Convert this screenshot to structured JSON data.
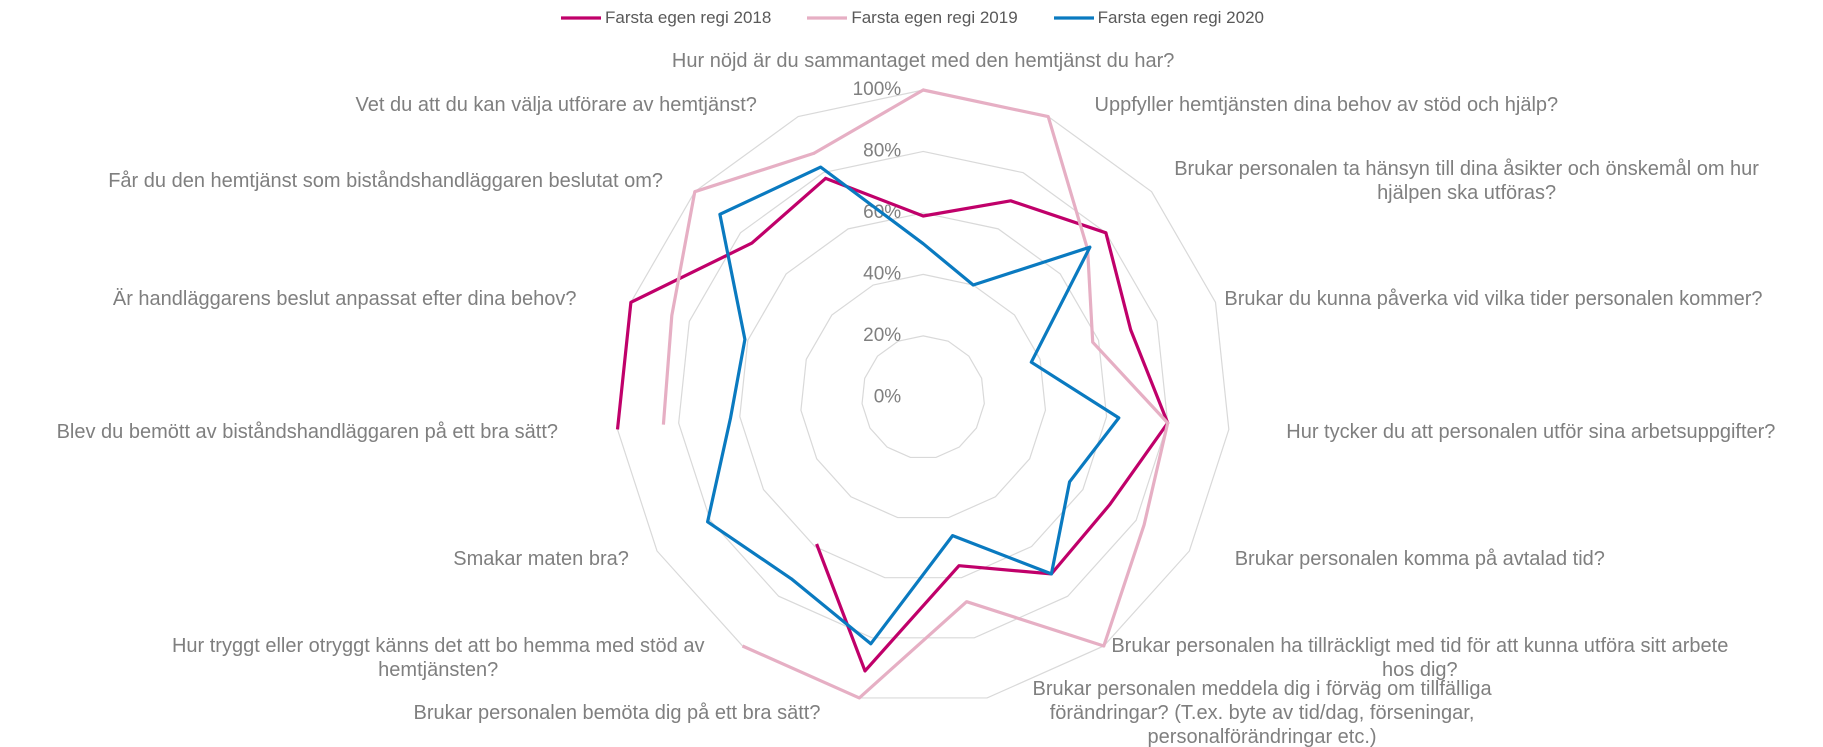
{
  "chart_data": {
    "type": "radar",
    "categories": [
      "Hur nöjd är du sammantaget med den hemtjänst du har?",
      "Uppfyller hemtjänsten dina behov av stöd och hjälp?",
      "Brukar personalen ta hänsyn till dina åsikter och önskemål om hur hjälpen ska utföras?",
      "Brukar du kunna påverka vid vilka tider personalen kommer?",
      "Hur tycker du att personalen utför sina arbetsuppgifter?",
      "Brukar personalen komma på avtalad tid?",
      "Brukar personalen ha tillräckligt med tid för att kunna utföra sitt arbete hos dig?",
      "Brukar personalen meddela dig i förväg om tillfälliga förändringar? (T.ex. byte av tid/dag, förseningar, personalförändringar etc.)",
      "Brukar personalen bemöta dig på ett bra sätt?",
      "Hur tryggt eller otryggt känns det att bo hemma med stöd av hemtjänsten?",
      "Smakar maten bra?",
      "Blev du bemött av biståndshandläggaren på ett bra sätt?",
      "Är handläggarens beslut anpassat efter dina behov?",
      "Får du den hemtjänst som biståndshandläggaren beslutat om?",
      "Vet du att du kan välja utförare av hemtjänst?"
    ],
    "series": [
      {
        "name": "Farsta egen regi 2018",
        "color": "#c0006a",
        "values": [
          59,
          70,
          80,
          71,
          80,
          70,
          71,
          56,
          91,
          59,
          null,
          100,
          100,
          75,
          78
        ]
      },
      {
        "name": "Farsta egen regi 2019",
        "color": "#e6afc4",
        "values": [
          100,
          100,
          72,
          58,
          80,
          83,
          100,
          68,
          100,
          100,
          null,
          85,
          86,
          100,
          87
        ]
      },
      {
        "name": "Farsta egen regi 2020",
        "color": "#0a7ac0",
        "values": [
          50,
          40,
          73,
          37,
          64,
          55,
          71,
          46,
          82,
          73,
          81,
          63,
          61,
          89,
          82
        ]
      }
    ],
    "ylim": [
      0,
      100
    ],
    "yticks": [
      {
        "value": 0,
        "label": "0%"
      },
      {
        "value": 20,
        "label": "20%"
      },
      {
        "value": 40,
        "label": "40%"
      },
      {
        "value": 60,
        "label": "60%"
      },
      {
        "value": 80,
        "label": "80%"
      },
      {
        "value": 100,
        "label": "100%"
      }
    ],
    "grid": true,
    "legend": "top"
  }
}
